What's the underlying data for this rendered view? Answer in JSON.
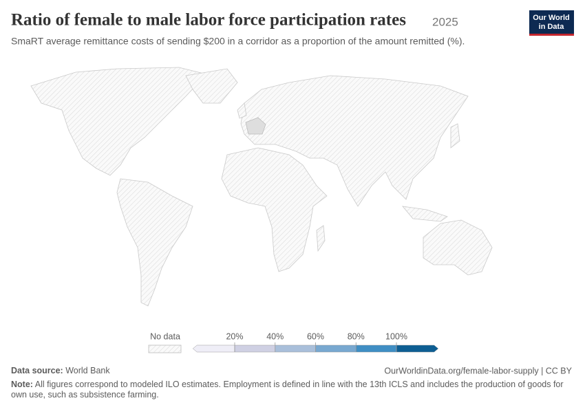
{
  "header": {
    "title": "Ratio of female to male labor force participation rates",
    "year": "2025",
    "subtitle": "SmaRT average remittance costs of sending $200 in a corridor as a proportion of the amount remitted (%).",
    "logo": [
      "Our World",
      "in Data"
    ]
  },
  "chart_data": {
    "type": "map",
    "legend": {
      "no_data_label": "No data",
      "ticks": [
        {
          "value": 20,
          "label": "20%"
        },
        {
          "value": 40,
          "label": "40%"
        },
        {
          "value": 60,
          "label": "60%"
        },
        {
          "value": 80,
          "label": "80%"
        },
        {
          "value": 100,
          "label": "100%"
        }
      ],
      "colors": [
        "#efeef7",
        "#cfd0e3",
        "#a9bfda",
        "#78a8d0",
        "#3f8ec4",
        "#0d5e93"
      ]
    }
  },
  "footer": {
    "source_label": "Data source:",
    "source": "World Bank",
    "url": "OurWorldinData.org/female-labor-supply | CC BY",
    "note_label": "Note:",
    "note": "All figures correspond to modeled ILO estimates. Employment is defined in line with the 13th ICLS and includes the production of goods for own use, such as subsistence farming."
  }
}
